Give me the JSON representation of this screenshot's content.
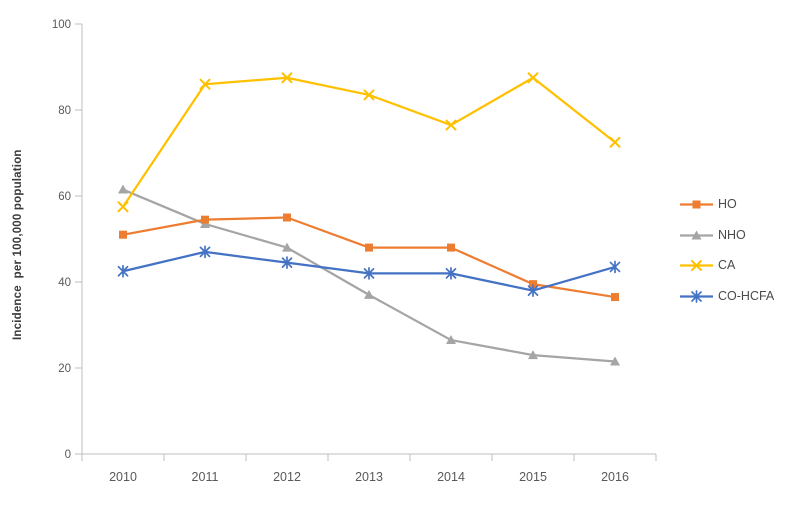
{
  "chart_data": {
    "type": "line",
    "title": "",
    "xlabel": "",
    "ylabel": "Incidence  per 100,000 population",
    "categories": [
      "2010",
      "2011",
      "2012",
      "2013",
      "2014",
      "2015",
      "2016"
    ],
    "series": [
      {
        "name": "HO",
        "color": "#ED7D31",
        "marker": "square",
        "values": [
          51,
          54.5,
          55,
          48,
          48,
          39.5,
          36.5
        ]
      },
      {
        "name": "NHO",
        "color": "#A5A5A5",
        "marker": "triangle",
        "values": [
          61.5,
          53.5,
          48,
          37,
          26.5,
          23,
          21.5
        ]
      },
      {
        "name": "CA",
        "color": "#FFC000",
        "marker": "x",
        "values": [
          57.5,
          86,
          87.5,
          83.5,
          76.5,
          87.5,
          72.5
        ]
      },
      {
        "name": "CO-HCFA",
        "color": "#4472C4",
        "marker": "asterisk",
        "values": [
          42.5,
          47,
          44.5,
          42,
          42,
          38,
          43.5
        ]
      }
    ],
    "ylim": [
      0,
      100
    ],
    "yticks": [
      0,
      20,
      40,
      60,
      80,
      100
    ],
    "grid": false,
    "legend_position": "right",
    "axis_color": "#BFBFBF",
    "tick_label_color": "#595959"
  }
}
